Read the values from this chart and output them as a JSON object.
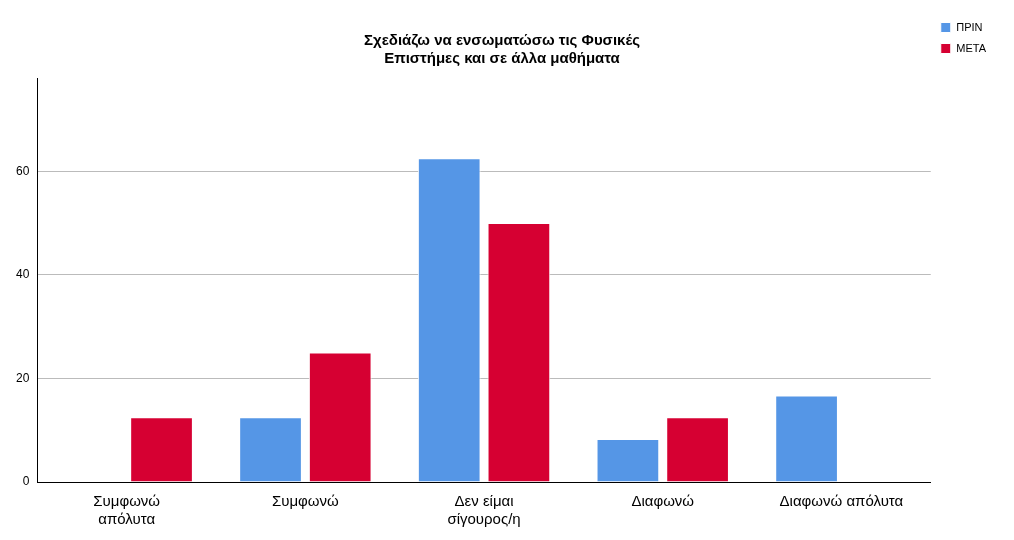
{
  "chart_data": {
    "type": "bar",
    "title": "Σχεδιάζω να ενσωματώσω τις Φυσικές\nΕπιστήμες και σε άλλα μαθήματα",
    "categories": [
      "Συμφωνώ\nαπόλυτα",
      "Συμφωνώ",
      "Δεν είμαι\nσίγουρος/η",
      "Διαφωνώ",
      "Διαφωνώ απόλυτα"
    ],
    "series": [
      {
        "name": "ΠΡΙΝ",
        "color": "#5596e6",
        "values": [
          0,
          12.5,
          62.5,
          8.3,
          16.7
        ]
      },
      {
        "name": "ΜΕΤΑ",
        "color": "#d60032",
        "values": [
          12.5,
          25,
          50,
          12.5,
          0
        ]
      }
    ],
    "ylim": [
      0,
      78
    ],
    "yticks": [
      0,
      20,
      40,
      60
    ],
    "grid": "y",
    "legend": "top right"
  }
}
